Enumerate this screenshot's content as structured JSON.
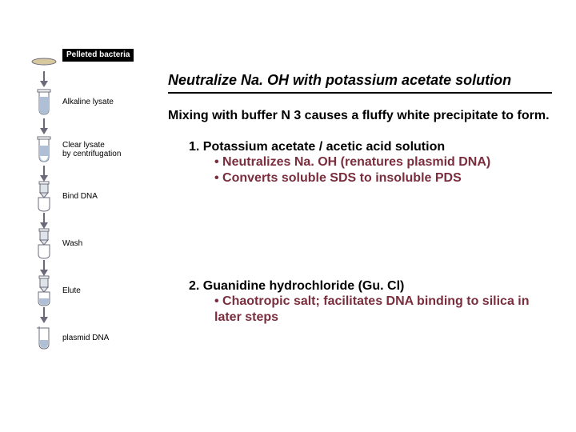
{
  "left": {
    "steps": [
      {
        "label": "Pelleted bacteria",
        "icon": "pellet",
        "black_bar": true
      },
      {
        "label": "Alkaline lysate",
        "icon": "tube-blue"
      },
      {
        "label": "Clear lysate\nby centrifugation",
        "icon": "tube-split"
      },
      {
        "label": "Bind DNA",
        "icon": "tube-column"
      },
      {
        "label": "Wash",
        "icon": "tube-column"
      },
      {
        "label": "Elute",
        "icon": "tube-column-elute"
      },
      {
        "label": "plasmid DNA",
        "icon": "open-tube"
      }
    ],
    "arrow_color": "#6a6a7a",
    "tube_outline": "#6b6b7b",
    "liquid_blue": "#aebfd6",
    "pellet_color": "#d8c8a0",
    "column_fill": "#dfe3ea"
  },
  "right": {
    "title": "Neutralize Na. OH with potassium acetate solution",
    "subtitle": "Mixing with buffer N 3 causes a fluffy white precipitate to form.",
    "section1": {
      "head": "1. Potassium acetate / acetic acid solution",
      "bullets": [
        "Neutralizes Na. OH (renatures plasmid DNA)",
        "Converts soluble SDS to insoluble PDS"
      ]
    },
    "section2": {
      "head": "2. Guanidine hydrochloride (Gu. Cl)",
      "bullets": [
        "Chaotropic salt; facilitates DNA binding to silica in later steps"
      ]
    },
    "bullet_color": "#7a2e3d"
  }
}
